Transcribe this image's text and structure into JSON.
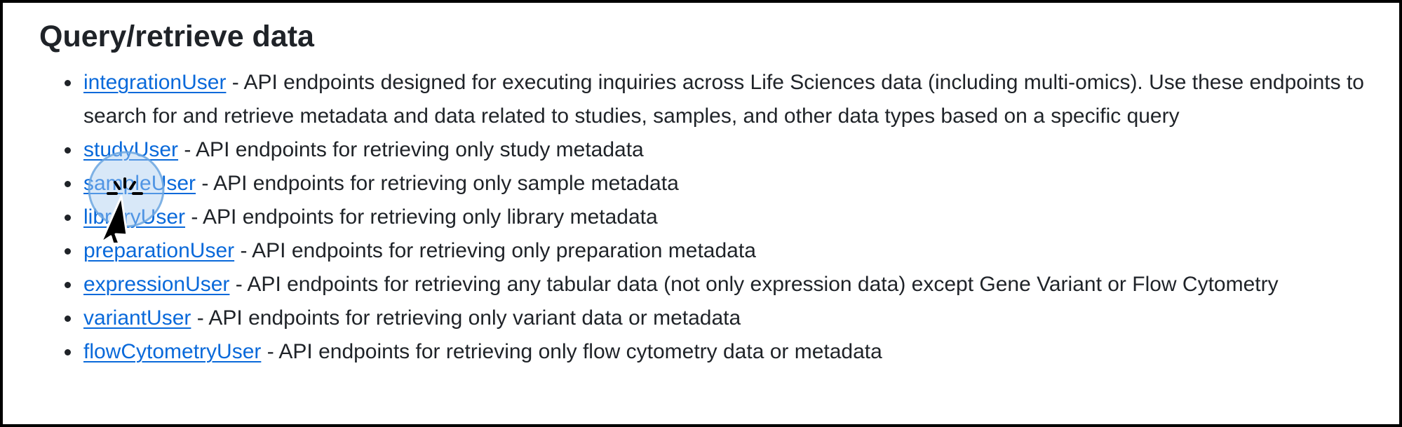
{
  "section": {
    "title": "Query/retrieve data"
  },
  "items": [
    {
      "link": "integrationUser",
      "description": " - API endpoints designed for executing inquiries across Life Sciences data (including multi-omics). Use these endpoints to search for and retrieve metadata and data related to studies, samples, and other data types based on a specific query"
    },
    {
      "link": "studyUser",
      "description": " - API endpoints for retrieving only study metadata"
    },
    {
      "link": "sampleUser",
      "description": " - API endpoints for retrieving only sample metadata"
    },
    {
      "link": "libraryUser",
      "description": " - API endpoints for retrieving only library metadata"
    },
    {
      "link": "preparationUser",
      "description": " - API endpoints for retrieving only preparation metadata"
    },
    {
      "link": "expressionUser",
      "description": " - API endpoints for retrieving any tabular data (not only expression data) except Gene Variant or Flow Cytometry"
    },
    {
      "link": "variantUser",
      "description": " - API endpoints for retrieving only variant data or metadata"
    },
    {
      "link": "flowCytometryUser",
      "description": " - API endpoints for retrieving only flow cytometry data or metadata"
    }
  ],
  "colors": {
    "link": "#0969da",
    "text": "#1f2328",
    "frame": "#000000",
    "click_highlight": "#a8cdf0"
  },
  "cursor": {
    "icon": "arrow-pointer-icon",
    "click_effect": "click-ripple-icon"
  }
}
